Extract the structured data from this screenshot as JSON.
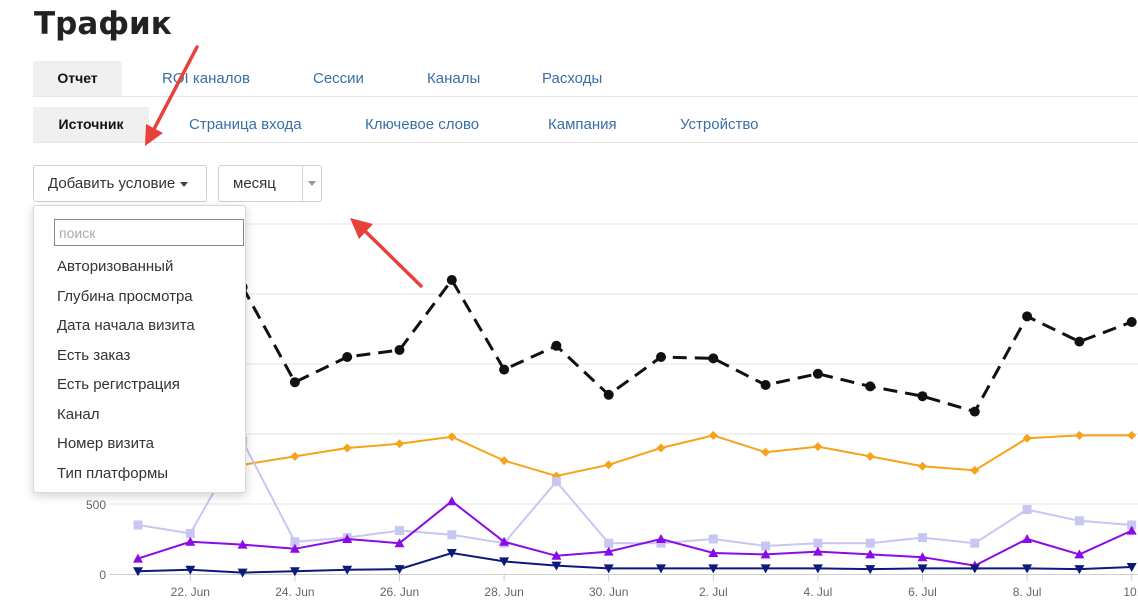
{
  "page": {
    "title": "Трафик"
  },
  "tabs_primary": [
    {
      "label": "Отчет",
      "active": true
    },
    {
      "label": "ROI каналов",
      "active": false
    },
    {
      "label": "Сессии",
      "active": false
    },
    {
      "label": "Каналы",
      "active": false
    },
    {
      "label": "Расходы",
      "active": false
    }
  ],
  "tabs_secondary": [
    {
      "label": "Источник",
      "active": true
    },
    {
      "label": "Страница входа",
      "active": false
    },
    {
      "label": "Ключевое слово",
      "active": false
    },
    {
      "label": "Кампания",
      "active": false
    },
    {
      "label": "Устройство",
      "active": false
    }
  ],
  "controls": {
    "add_condition_label": "Добавить условие",
    "period_value": "месяц"
  },
  "dropdown": {
    "search_placeholder": "поиск",
    "items": [
      "Авторизованный",
      "Глубина просмотра",
      "Дата начала визита",
      "Есть заказ",
      "Есть регистрация",
      "Канал",
      "Номер визита",
      "Тип платформы"
    ]
  },
  "annotation_color": "#e8413a",
  "chart_data": {
    "type": "line",
    "x": [
      "21. Jun",
      "22. Jun",
      "23. Jun",
      "24. Jun",
      "25. Jun",
      "26. Jun",
      "27. Jun",
      "28. Jun",
      "29. Jun",
      "30. Jun",
      "1. Jul",
      "2. Jul",
      "3. Jul",
      "4. Jul",
      "5. Jul",
      "6. Jul",
      "7. Jul",
      "8. Jul",
      "9. Jul",
      "10. Jul"
    ],
    "xtick_labels": [
      "22. Jun",
      "24. Jun",
      "26. Jun",
      "28. Jun",
      "30. Jun",
      "2. Jul",
      "4. Jul",
      "6. Jul",
      "8. Jul",
      "10."
    ],
    "ytick_labels": [
      "0",
      "500"
    ],
    "ylim": [
      0,
      2500
    ],
    "grid": true,
    "series": [
      {
        "color": "#111111",
        "marker": "circle",
        "dash": true,
        "values": [
          null,
          null,
          2050,
          1370,
          1550,
          1600,
          2100,
          1460,
          1630,
          1280,
          1550,
          1540,
          1350,
          1430,
          1340,
          1270,
          1160,
          1840,
          1660,
          1800
        ]
      },
      {
        "color": "#f5a31a",
        "marker": "diamond",
        "values": [
          null,
          null,
          780,
          840,
          900,
          930,
          980,
          810,
          700,
          780,
          900,
          990,
          870,
          910,
          840,
          770,
          740,
          970,
          990,
          990
        ]
      },
      {
        "color": "#c8c6f2",
        "marker": "square",
        "values": [
          350,
          290,
          950,
          230,
          260,
          310,
          280,
          220,
          660,
          220,
          220,
          250,
          200,
          220,
          220,
          260,
          220,
          460,
          380,
          350
        ]
      },
      {
        "color": "#8a0be6",
        "marker": "triangle-up",
        "values": [
          110,
          230,
          210,
          180,
          250,
          220,
          520,
          230,
          130,
          160,
          250,
          150,
          140,
          160,
          140,
          120,
          60,
          250,
          140,
          310
        ]
      },
      {
        "color": "#0c1a7a",
        "marker": "triangle-down",
        "values": [
          20,
          30,
          10,
          20,
          30,
          35,
          150,
          90,
          60,
          40,
          40,
          40,
          40,
          40,
          35,
          40,
          40,
          40,
          35,
          50
        ]
      }
    ]
  }
}
